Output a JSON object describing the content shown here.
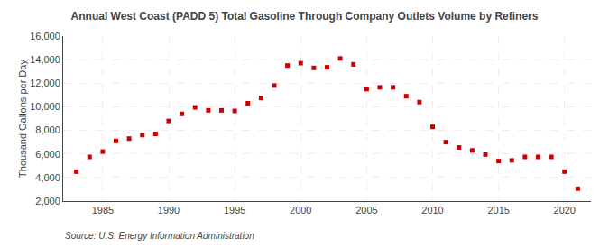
{
  "chart_data": {
    "type": "scatter",
    "title": "Annual West Coast (PADD 5) Total Gasoline Through Company Outlets Volume by Refiners",
    "ylabel": "Thousand Gallons per Day",
    "source": "Source: U.S. Energy Information Administration",
    "x": [
      1983,
      1984,
      1985,
      1986,
      1987,
      1988,
      1989,
      1990,
      1991,
      1992,
      1993,
      1994,
      1995,
      1996,
      1997,
      1998,
      1999,
      2000,
      2001,
      2002,
      2003,
      2004,
      2005,
      2006,
      2007,
      2008,
      2009,
      2010,
      2011,
      2012,
      2013,
      2014,
      2015,
      2016,
      2017,
      2018,
      2019,
      2020,
      2021
    ],
    "values": [
      4500,
      5750,
      6200,
      7100,
      7300,
      7600,
      7700,
      8800,
      9400,
      9950,
      9700,
      9700,
      9650,
      10300,
      10750,
      11800,
      13500,
      13700,
      13300,
      13350,
      14100,
      13600,
      11500,
      11650,
      11650,
      10900,
      10400,
      8300,
      7000,
      6550,
      6300,
      5950,
      5400,
      5450,
      5750,
      5750,
      5750,
      4500,
      3050
    ],
    "color": "#cc0000",
    "marker": "square",
    "xlim": [
      1982,
      2022
    ],
    "xticks": [
      1985,
      1990,
      1995,
      2000,
      2005,
      2010,
      2015,
      2020
    ],
    "ylim": [
      2000,
      16000
    ],
    "yticks": [
      {
        "value": 2000,
        "label": "2,000"
      },
      {
        "value": 4000,
        "label": "4,000"
      },
      {
        "value": 6000,
        "label": "6,000"
      },
      {
        "value": 8000,
        "label": "8,000"
      },
      {
        "value": 10000,
        "label": "10,000"
      },
      {
        "value": 12000,
        "label": "12,000"
      },
      {
        "value": 14000,
        "label": "14,000"
      },
      {
        "value": 16000,
        "label": "16,000"
      }
    ],
    "grid": true
  }
}
